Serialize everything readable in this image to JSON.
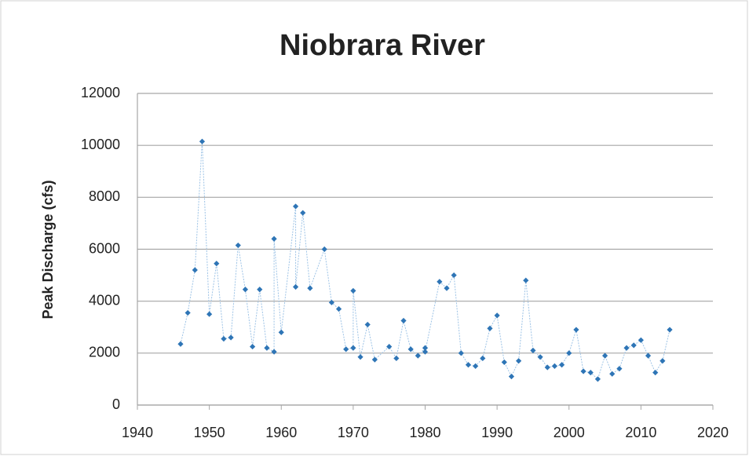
{
  "chart_data": {
    "type": "scatter",
    "title": "Niobrara River",
    "y_label": "Peak Discharge (cfs)",
    "series": [
      {
        "name": "Peak Discharge",
        "color": "#2e75b6",
        "line_color": "#9dc3e6",
        "x": [
          1946,
          1947,
          1948,
          1949,
          1950,
          1951,
          1952,
          1953,
          1954,
          1955,
          1956,
          1957,
          1958,
          1959,
          1959,
          1960,
          1962,
          1962,
          1963,
          1964,
          1966,
          1967,
          1968,
          1969,
          1970,
          1970,
          1971,
          1972,
          1973,
          1975,
          1976,
          1977,
          1978,
          1979,
          1980,
          1980,
          1982,
          1983,
          1984,
          1985,
          1986,
          1987,
          1988,
          1989,
          1990,
          1991,
          1992,
          1993,
          1994,
          1995,
          1996,
          1997,
          1998,
          1999,
          2000,
          2001,
          2002,
          2003,
          2004,
          2005,
          2006,
          2007,
          2008,
          2009,
          2010,
          2011,
          2012,
          2013,
          2014
        ],
        "values": [
          2350,
          3550,
          5200,
          10150,
          3500,
          5450,
          2550,
          2600,
          6150,
          4450,
          2250,
          4450,
          2200,
          2050,
          6400,
          2800,
          7650,
          4550,
          7400,
          4500,
          6000,
          3950,
          3700,
          2150,
          2200,
          4400,
          1850,
          3100,
          1750,
          2250,
          1800,
          3250,
          2150,
          1900,
          2200,
          2050,
          4750,
          4500,
          5000,
          2000,
          1550,
          1500,
          1800,
          2950,
          3450,
          1650,
          1100,
          1700,
          4800,
          2100,
          1850,
          1450,
          1500,
          1550,
          2000,
          2900,
          1300,
          1250,
          1000,
          1900,
          1200,
          1400,
          2200,
          2300,
          2500,
          1900,
          1250,
          1700,
          2900
        ]
      }
    ],
    "xlim": [
      1940,
      2020
    ],
    "xticks": [
      1940,
      1950,
      1960,
      1970,
      1980,
      1990,
      2000,
      2010,
      2020
    ],
    "ylim": [
      0,
      12000
    ],
    "yticks": [
      0,
      2000,
      4000,
      6000,
      8000,
      10000,
      12000
    ],
    "grid": true
  }
}
